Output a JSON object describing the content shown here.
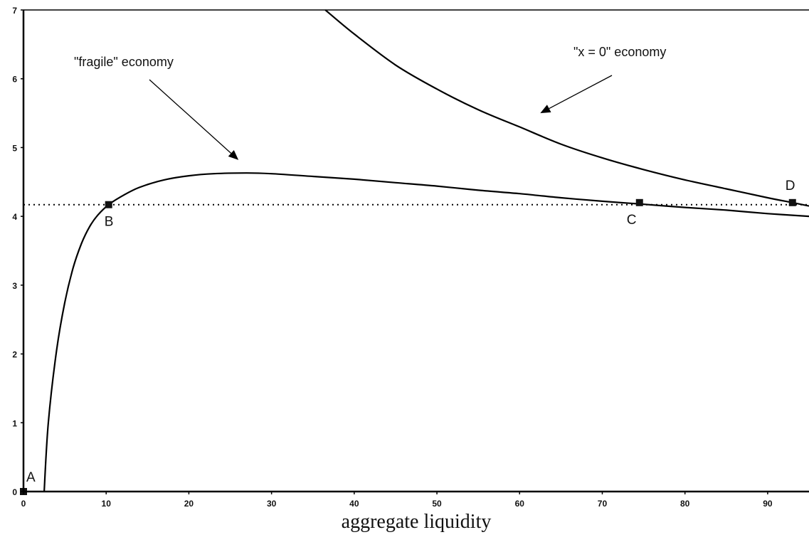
{
  "chart_data": {
    "type": "line",
    "title": "",
    "xlabel": "aggregate liquidity",
    "ylabel": "",
    "xlim": [
      0,
      95
    ],
    "ylim": [
      0,
      7
    ],
    "x_ticks": [
      0,
      10,
      20,
      30,
      40,
      50,
      60,
      70,
      80,
      90
    ],
    "y_ticks": [
      0,
      1,
      2,
      3,
      4,
      5,
      6,
      7
    ],
    "grid": false,
    "series": [
      {
        "name": "\"fragile\" economy",
        "x": [
          2.5,
          3,
          4,
          5,
          6,
          7,
          8,
          9,
          10.3,
          12,
          14,
          17,
          20,
          23,
          27,
          30,
          35,
          40,
          45,
          50,
          55,
          60,
          65,
          70,
          74.5,
          80,
          85,
          90,
          95
        ],
        "y": [
          0,
          1.0,
          2.05,
          2.75,
          3.25,
          3.6,
          3.85,
          4.02,
          4.17,
          4.3,
          4.42,
          4.53,
          4.59,
          4.62,
          4.63,
          4.62,
          4.58,
          4.54,
          4.49,
          4.44,
          4.38,
          4.33,
          4.27,
          4.22,
          4.18,
          4.13,
          4.09,
          4.04,
          4.0
        ]
      },
      {
        "name": "\"x = 0\" economy",
        "x": [
          36.5,
          40,
          45,
          50,
          55,
          60,
          65,
          70,
          75,
          80,
          85,
          90,
          93,
          95
        ],
        "y": [
          7.0,
          6.65,
          6.2,
          5.85,
          5.55,
          5.3,
          5.05,
          4.85,
          4.68,
          4.53,
          4.4,
          4.27,
          4.2,
          4.15
        ]
      },
      {
        "name": "",
        "style": "dotted",
        "x": [
          0,
          95
        ],
        "y": [
          4.17,
          4.17
        ]
      }
    ],
    "points": [
      {
        "label": "A",
        "x": 0,
        "y": 0
      },
      {
        "label": "B",
        "x": 10.3,
        "y": 4.17
      },
      {
        "label": "C",
        "x": 74.5,
        "y": 4.2
      },
      {
        "label": "D",
        "x": 93,
        "y": 4.2
      }
    ],
    "annotations": [
      {
        "text": "\"fragile\" economy",
        "arrow_to": [
          26,
          4.82
        ]
      },
      {
        "text": "\"x = 0\" economy",
        "arrow_to": [
          62.5,
          5.5
        ]
      }
    ]
  }
}
